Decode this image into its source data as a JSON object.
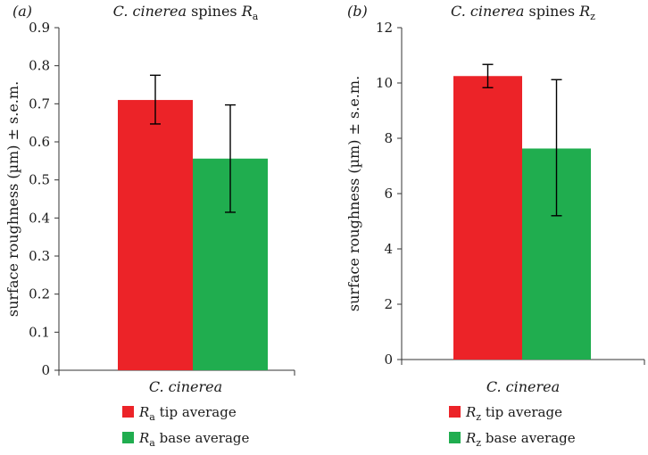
{
  "chart_data": [
    {
      "panel_label": "(a)",
      "type": "bar",
      "title_italic": "C. cinerea",
      "title_rest": " spines ",
      "title_symbol": "R",
      "title_subscript": "a",
      "ylabel": "surface roughness (µm) ± s.e.m.",
      "category": "C. cinerea",
      "ylim": [
        0,
        0.9
      ],
      "yticks": [
        0,
        0.1,
        0.2,
        0.3,
        0.4,
        0.5,
        0.6,
        0.7,
        0.8,
        0.9
      ],
      "ytick_labels": [
        "0",
        "0.1",
        "0.2",
        "0.3",
        "0.4",
        "0.5",
        "0.6",
        "0.7",
        "0.8",
        "0.9"
      ],
      "series": [
        {
          "name": "tip average",
          "symbol": "R",
          "subscript": "a",
          "value": 0.71,
          "err_low": 0.647,
          "err_high": 0.775,
          "color": "#ec2328"
        },
        {
          "name": "base average",
          "symbol": "R",
          "subscript": "a",
          "value": 0.556,
          "err_low": 0.415,
          "err_high": 0.697,
          "color": "#20ad4f"
        }
      ]
    },
    {
      "panel_label": "(b)",
      "type": "bar",
      "title_italic": "C. cinerea",
      "title_rest": " spines ",
      "title_symbol": "R",
      "title_subscript": "z",
      "ylabel": "surface roughness (µm) ± s.e.m.",
      "category": "C. cinerea",
      "ylim": [
        0,
        12
      ],
      "yticks": [
        0,
        2,
        4,
        6,
        8,
        10,
        12
      ],
      "ytick_labels": [
        "0",
        "2",
        "4",
        "6",
        "8",
        "10",
        "12"
      ],
      "series": [
        {
          "name": "tip average",
          "symbol": "R",
          "subscript": "z",
          "value": 10.25,
          "err_low": 9.83,
          "err_high": 10.67,
          "color": "#ec2328"
        },
        {
          "name": "base average",
          "symbol": "R",
          "subscript": "z",
          "value": 7.63,
          "err_low": 5.2,
          "err_high": 10.12,
          "color": "#20ad4f"
        }
      ]
    }
  ]
}
